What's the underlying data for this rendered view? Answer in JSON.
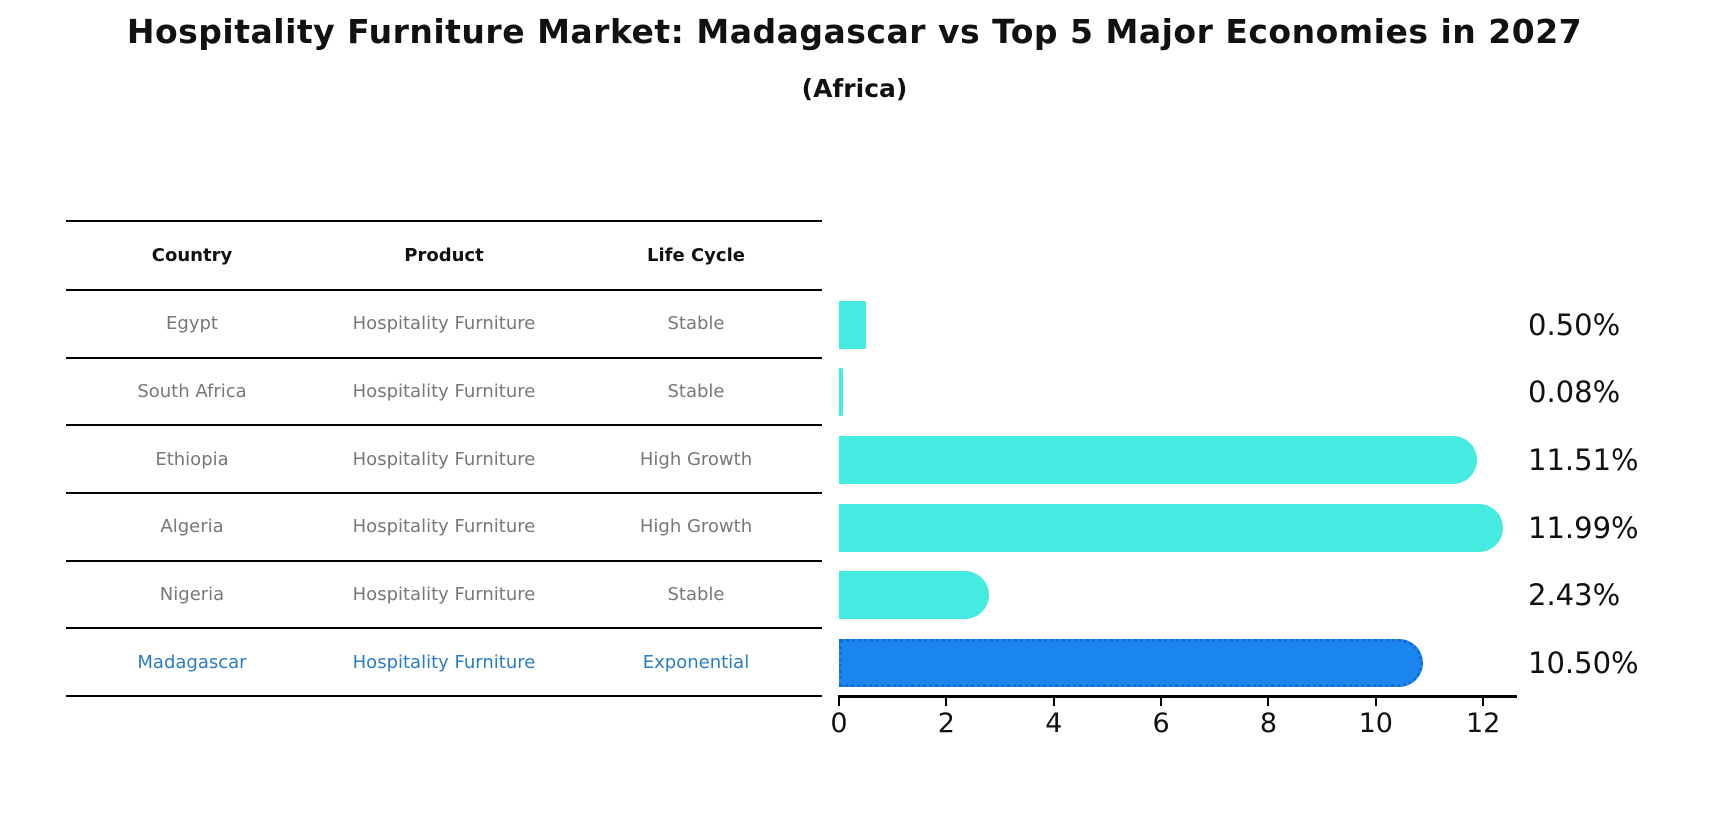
{
  "title": "Hospitality Furniture Market: Madagascar vs Top 5 Major Economies in 2027",
  "subtitle": "(Africa)",
  "table": {
    "headers": {
      "country": "Country",
      "product": "Product",
      "life_cycle": "Life Cycle"
    },
    "rows": [
      {
        "country": "Egypt",
        "product": "Hospitality Furniture",
        "life_cycle": "Stable"
      },
      {
        "country": "South Africa",
        "product": "Hospitality Furniture",
        "life_cycle": "Stable"
      },
      {
        "country": "Ethiopia",
        "product": "Hospitality Furniture",
        "life_cycle": "High Growth"
      },
      {
        "country": "Algeria",
        "product": "Hospitality Furniture",
        "life_cycle": "High Growth"
      },
      {
        "country": "Nigeria",
        "product": "Hospitality Furniture",
        "life_cycle": "Stable"
      },
      {
        "country": "Madagascar",
        "product": "Hospitality Furniture",
        "life_cycle": "Exponential"
      }
    ]
  },
  "chart_data": {
    "type": "bar",
    "orientation": "horizontal",
    "title": "Hospitality Furniture Market: Madagascar vs Top 5 Major Economies in 2027 (Africa)",
    "categories": [
      "Egypt",
      "South Africa",
      "Ethiopia",
      "Algeria",
      "Nigeria",
      "Madagascar"
    ],
    "values": [
      0.5,
      0.08,
      11.51,
      11.99,
      2.43,
      10.5
    ],
    "value_labels": [
      "0.50%",
      "0.08%",
      "11.51%",
      "11.99%",
      "2.43%",
      "10.50%"
    ],
    "x_ticks": [
      0,
      2,
      4,
      6,
      8,
      10,
      12
    ],
    "xlim": [
      0,
      12.63
    ],
    "grid": false,
    "legend": "none",
    "bar_color": "#45eae0",
    "highlight_color": "#1c86f0",
    "highlight_index": 5,
    "highlight_text_color": "#2a7cc7"
  }
}
